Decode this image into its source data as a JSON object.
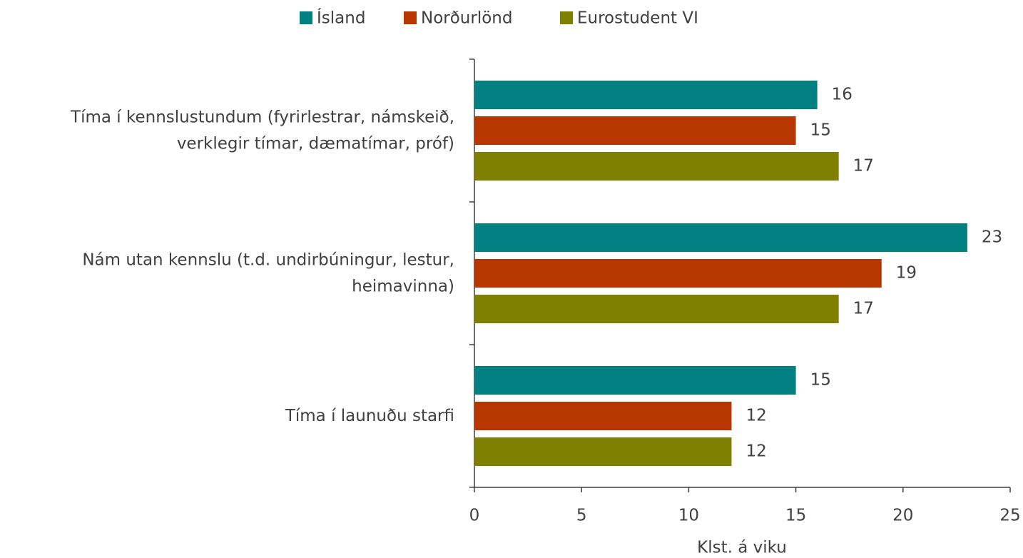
{
  "chart_data": {
    "type": "hbar",
    "categories": [
      "Tíma í kennslustundum (fyrirlestrar, námskeið, verklegir tímar, dæmatímar, próf)",
      "Nám utan kennslu (t.d. undirbúningur, lestur, heimavinna)",
      "Tíma í launuðu starfi"
    ],
    "series": [
      {
        "name": "Ísland",
        "color": "#008080",
        "values": [
          16,
          23,
          15
        ]
      },
      {
        "name": "Norðurlönd",
        "color": "#b83700",
        "values": [
          15,
          19,
          12
        ]
      },
      {
        "name": "Eurostudent VI",
        "color": "#808000",
        "values": [
          17,
          17,
          12
        ]
      }
    ],
    "xlabel": "Klst. á viku",
    "xlim": [
      0,
      25
    ],
    "xticks": [
      0,
      5,
      10,
      15,
      20,
      25
    ],
    "legend": "top"
  }
}
